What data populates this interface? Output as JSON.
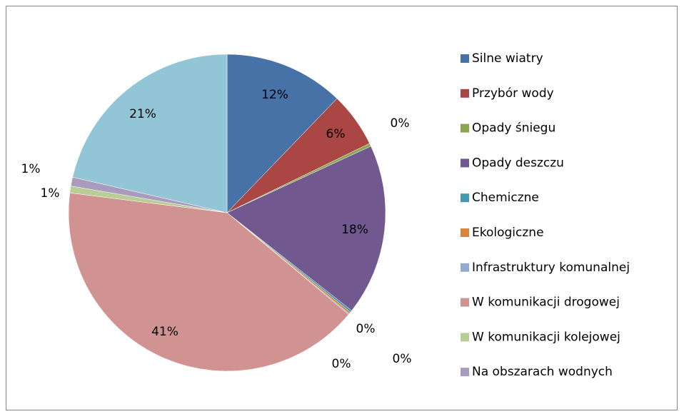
{
  "chart_data": {
    "type": "pie",
    "categories": [
      "Silne wiatry",
      "Przybór wody",
      "Opady śniegu",
      "Opady deszczu",
      "Chemiczne",
      "Ekologiczne",
      "Infrastruktury komunalnej",
      "W komunikacji drogowej",
      "W komunikacji kolejowej",
      "Na obszarach wodnych",
      null
    ],
    "values": [
      12.2,
      5.6,
      0.3,
      17.5,
      0.2,
      0.2,
      0.1,
      40.9,
      0.7,
      0.9,
      21.4
    ],
    "value_labels": [
      "12%",
      "6%",
      "0%",
      "18%",
      "0%",
      "0%",
      "0%",
      "41%",
      "1%",
      "1%",
      "21%"
    ],
    "colors": [
      "#4672a8",
      "#aa4643",
      "#89a54e",
      "#71588f",
      "#4198af",
      "#db843d",
      "#93a9cf",
      "#d19392",
      "#b9cd96",
      "#a99bbd",
      "#92c5d6"
    ],
    "legend": "right"
  }
}
